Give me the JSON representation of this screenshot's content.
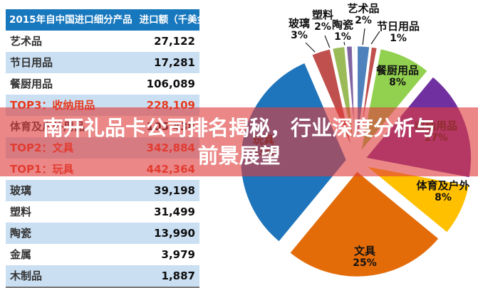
{
  "overlay": {
    "title_line1": "南开礼品卡公司排名揭秘，行业深度分析与",
    "title_line2": "前景展望",
    "band_color": "#df3e3e",
    "text_color": "#ffffff"
  },
  "table": {
    "header_left": "2015年自中国进口细分产品",
    "header_right": "进口额（千美金）",
    "header_bg": "#1878be",
    "alt_row_bg": "#cbdff2",
    "highlight_color": "#e8391c",
    "rows": [
      {
        "label": "艺术品",
        "value": "27,122",
        "highlight": false
      },
      {
        "label": "节日用品",
        "value": "17,281",
        "highlight": false
      },
      {
        "label": "餐厨用品",
        "value": "106,089",
        "highlight": false
      },
      {
        "label": "TOP3：收纳用品",
        "value": "228,109",
        "highlight": true
      },
      {
        "label": "体育及户外用品",
        "value": "105,438",
        "highlight": false
      },
      {
        "label": "TOP2：文具",
        "value": "342,884",
        "highlight": true
      },
      {
        "label": "TOP1：玩具",
        "value": "442,364",
        "highlight": true
      },
      {
        "label": "玻璃",
        "value": "39,198",
        "highlight": false
      },
      {
        "label": "塑料",
        "value": "31,499",
        "highlight": false
      },
      {
        "label": "陶瓷",
        "value": "13,990",
        "highlight": false
      },
      {
        "label": "金属",
        "value": "3,979",
        "highlight": false
      },
      {
        "label": "木制品",
        "value": "1,887",
        "highlight": false
      }
    ]
  },
  "chart_data": {
    "type": "pie",
    "style": "exploded",
    "legend": "none",
    "title": "",
    "slices": [
      {
        "label": "艺术品",
        "pct": 2,
        "pct_label": "2%",
        "color": "#4f81bd"
      },
      {
        "label": "节日用品",
        "pct": 1,
        "pct_label": "1%",
        "color": "#c0504d"
      },
      {
        "label": "餐厨用品",
        "pct": 8,
        "pct_label": "8%",
        "color": "#92d050"
      },
      {
        "label": "收纳用品",
        "pct": 17,
        "pct_label": "17%",
        "color": "#7030a0"
      },
      {
        "label": "体育及户外",
        "pct": 8,
        "pct_label": "8%",
        "color": "#ffc000"
      },
      {
        "label": "文具",
        "pct": 25,
        "pct_label": "25%",
        "color": "#e36c09"
      },
      {
        "label": "玩具",
        "pct": 32.6,
        "pct_label": "33%",
        "color": "#1f75bb"
      },
      {
        "label": "玻璃",
        "pct": 3,
        "pct_label": "3%",
        "color": "#c0504d"
      },
      {
        "label": "塑料",
        "pct": 2,
        "pct_label": "2%",
        "color": "#9bbb59"
      },
      {
        "label": "陶瓷",
        "pct": 1,
        "pct_label": "1%",
        "color": "#8064a2"
      },
      {
        "label": "金属",
        "pct": 0.3,
        "pct_label": "",
        "color": "#4bacc6"
      },
      {
        "label": "木制品",
        "pct": 0.15,
        "pct_label": "",
        "color": "#f79646"
      }
    ]
  }
}
